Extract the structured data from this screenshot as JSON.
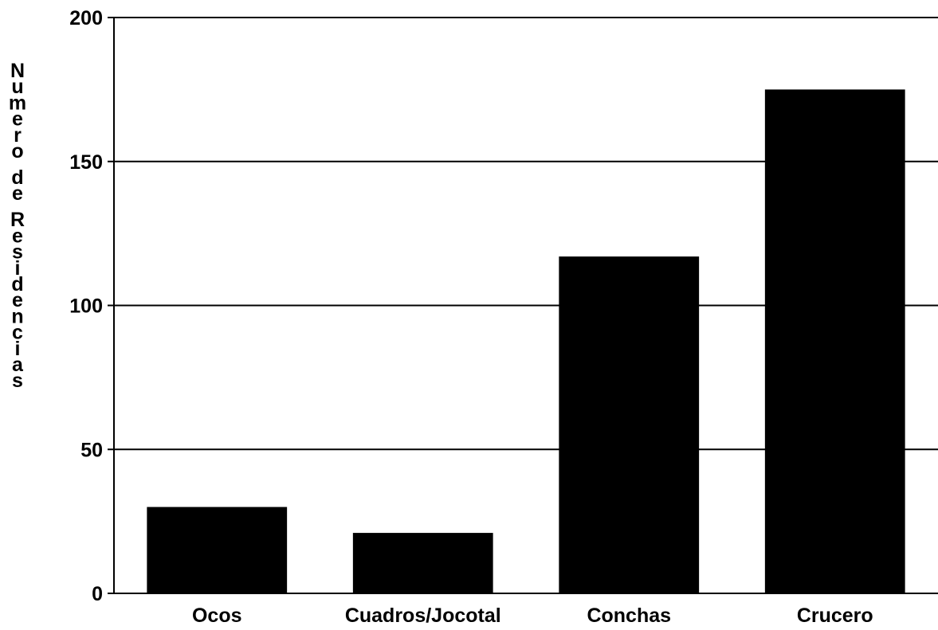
{
  "chart_data": {
    "type": "bar",
    "categories": [
      "Ocos",
      "Cuadros/Jocotal",
      "Conchas",
      "Crucero"
    ],
    "values": [
      30,
      21,
      117,
      175
    ],
    "title": "",
    "xlabel": "",
    "ylabel": "Numero de Residencias",
    "ylim": [
      0,
      200
    ],
    "yticks": [
      "0",
      "50",
      "100",
      "150",
      "200"
    ],
    "grid": true,
    "bar_color": "#000000"
  }
}
